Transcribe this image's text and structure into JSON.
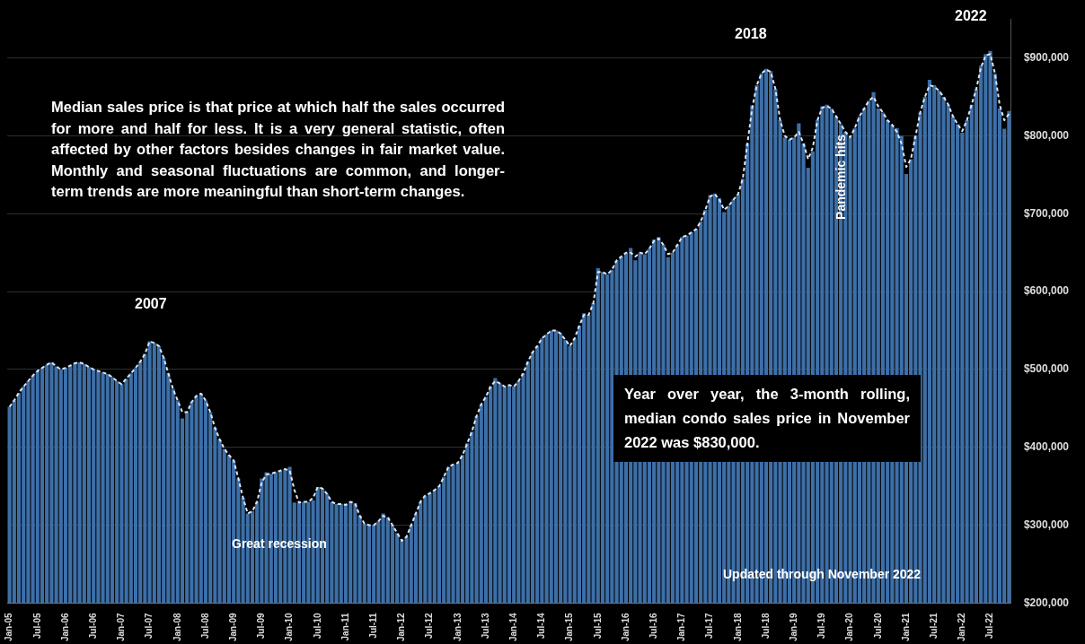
{
  "chart_data": {
    "type": "bar",
    "categories": [
      "Jan-05",
      null,
      null,
      null,
      null,
      null,
      "Jul-05",
      null,
      null,
      null,
      null,
      null,
      "Jan-06",
      null,
      null,
      null,
      null,
      null,
      "Jul-06",
      null,
      null,
      null,
      null,
      null,
      "Jan-07",
      null,
      null,
      null,
      null,
      null,
      "Jul-07",
      null,
      null,
      null,
      null,
      null,
      "Jan-08",
      null,
      null,
      null,
      null,
      null,
      "Jul-08",
      null,
      null,
      null,
      null,
      null,
      "Jan-09",
      null,
      null,
      null,
      null,
      null,
      "Jul-09",
      null,
      null,
      null,
      null,
      null,
      "Jan-10",
      null,
      null,
      null,
      null,
      null,
      "Jul-10",
      null,
      null,
      null,
      null,
      null,
      "Jan-11",
      null,
      null,
      null,
      null,
      null,
      "Jul-11",
      null,
      null,
      null,
      null,
      null,
      "Jan-12",
      null,
      null,
      null,
      null,
      null,
      "Jul-12",
      null,
      null,
      null,
      null,
      null,
      "Jan-13",
      null,
      null,
      null,
      null,
      null,
      "Jul-13",
      null,
      null,
      null,
      null,
      null,
      "Jan-14",
      null,
      null,
      null,
      null,
      null,
      "Jul-14",
      null,
      null,
      null,
      null,
      null,
      "Jan-15",
      null,
      null,
      null,
      null,
      null,
      "Jul-15",
      null,
      null,
      null,
      null,
      null,
      "Jan-16",
      null,
      null,
      null,
      null,
      null,
      "Jul-16",
      null,
      null,
      null,
      null,
      null,
      "Jan-17",
      null,
      null,
      null,
      null,
      null,
      "Jul-17",
      null,
      null,
      null,
      null,
      null,
      "Jan-18",
      null,
      null,
      null,
      null,
      null,
      "Jul-18",
      null,
      null,
      null,
      null,
      null,
      "Jan-19",
      null,
      null,
      null,
      null,
      null,
      "Jul-19",
      null,
      null,
      null,
      null,
      null,
      "Jan-20",
      null,
      null,
      null,
      null,
      null,
      "Jul-20",
      null,
      null,
      null,
      null,
      null,
      "Jan-21",
      null,
      null,
      null,
      null,
      null,
      "Jul-21",
      null,
      null,
      null,
      null,
      null,
      "Jan-22",
      null,
      null,
      null,
      null,
      null,
      "Jul-22",
      null,
      null,
      null,
      null
    ],
    "series": [
      {
        "color": "#3d6fa8",
        "values": [
          452000,
          460000,
          470000,
          478000,
          485000,
          492000,
          498000,
          502000,
          506000,
          509000,
          504000,
          500000,
          502000,
          505000,
          508000,
          509000,
          507000,
          503000,
          500000,
          498000,
          496000,
          494000,
          490000,
          485000,
          481000,
          488000,
          495000,
          502000,
          510000,
          520000,
          536000,
          534000,
          530000,
          515000,
          495000,
          475000,
          460000,
          437000,
          445000,
          458000,
          466000,
          469000,
          460000,
          445000,
          425000,
          410000,
          398000,
          390000,
          383000,
          360000,
          335000,
          315000,
          318000,
          330000,
          360000,
          368000,
          366000,
          368000,
          370000,
          372000,
          375000,
          329000,
          329000,
          330000,
          330000,
          332000,
          349000,
          347000,
          340000,
          330000,
          327000,
          327000,
          326000,
          330000,
          328000,
          312000,
          302000,
          300000,
          300000,
          305000,
          315000,
          310000,
          300000,
          290000,
          280000,
          285000,
          300000,
          315000,
          330000,
          338000,
          341000,
          345000,
          350000,
          362000,
          375000,
          378000,
          380000,
          390000,
          405000,
          420000,
          440000,
          455000,
          465000,
          478000,
          489000,
          482000,
          478000,
          480000,
          478000,
          485000,
          495000,
          510000,
          522000,
          530000,
          540000,
          545000,
          550000,
          550000,
          546000,
          538000,
          530000,
          540000,
          556000,
          572000,
          570000,
          585000,
          630000,
          625000,
          622000,
          628000,
          640000,
          645000,
          650000,
          656000,
          640000,
          650000,
          648000,
          655000,
          667000,
          670000,
          660000,
          644000,
          650000,
          660000,
          670000,
          672000,
          676000,
          680000,
          690000,
          705000,
          724000,
          726000,
          720000,
          702000,
          710000,
          718000,
          725000,
          745000,
          790000,
          839000,
          865000,
          880000,
          886000,
          883000,
          860000,
          820000,
          798000,
          795000,
          798000,
          816000,
          790000,
          759000,
          780000,
          820000,
          838000,
          840000,
          835000,
          825000,
          815000,
          805000,
          798000,
          810000,
          825000,
          835000,
          845000,
          856000,
          835000,
          830000,
          820000,
          814000,
          810000,
          800000,
          751000,
          770000,
          800000,
          830000,
          850000,
          872000,
          865000,
          858000,
          850000,
          840000,
          825000,
          815000,
          804000,
          820000,
          840000,
          860000,
          890000,
          905000,
          909000,
          880000,
          835000,
          809000,
          832000
        ]
      },
      {
        "type": "line",
        "color": "#dce6f2",
        "values": [
          452000,
          460000,
          470000,
          478000,
          485000,
          492000,
          498000,
          502000,
          506000,
          509000,
          504000,
          500000,
          502000,
          505000,
          508000,
          509000,
          507000,
          503000,
          500000,
          498000,
          496000,
          494000,
          490000,
          485000,
          481000,
          488000,
          495000,
          502000,
          510000,
          520000,
          536000,
          534000,
          530000,
          515000,
          495000,
          475000,
          460000,
          445000,
          445000,
          458000,
          466000,
          469000,
          460000,
          445000,
          425000,
          410000,
          398000,
          390000,
          383000,
          360000,
          335000,
          315000,
          318000,
          330000,
          355000,
          365000,
          366000,
          368000,
          370000,
          372000,
          370000,
          345000,
          329000,
          330000,
          330000,
          335000,
          349000,
          347000,
          340000,
          330000,
          327000,
          327000,
          326000,
          330000,
          328000,
          312000,
          302000,
          300000,
          300000,
          305000,
          312000,
          310000,
          300000,
          290000,
          280000,
          285000,
          300000,
          315000,
          330000,
          338000,
          341000,
          345000,
          350000,
          362000,
          375000,
          378000,
          380000,
          390000,
          405000,
          420000,
          440000,
          455000,
          465000,
          478000,
          485000,
          482000,
          478000,
          480000,
          478000,
          485000,
          495000,
          510000,
          522000,
          530000,
          540000,
          545000,
          550000,
          550000,
          546000,
          538000,
          530000,
          540000,
          556000,
          570000,
          570000,
          585000,
          625000,
          625000,
          622000,
          628000,
          640000,
          645000,
          650000,
          650000,
          645000,
          650000,
          648000,
          655000,
          665000,
          668000,
          660000,
          648000,
          650000,
          660000,
          670000,
          672000,
          676000,
          680000,
          690000,
          705000,
          722000,
          725000,
          718000,
          705000,
          710000,
          718000,
          725000,
          745000,
          790000,
          835000,
          865000,
          880000,
          885000,
          882000,
          860000,
          820000,
          800000,
          795000,
          798000,
          805000,
          790000,
          770000,
          785000,
          820000,
          836000,
          838000,
          835000,
          825000,
          815000,
          805000,
          798000,
          810000,
          825000,
          835000,
          845000,
          850000,
          838000,
          830000,
          820000,
          814000,
          805000,
          790000,
          760000,
          770000,
          800000,
          830000,
          850000,
          865000,
          863000,
          858000,
          850000,
          840000,
          825000,
          815000,
          806000,
          820000,
          840000,
          860000,
          888000,
          903000,
          905000,
          880000,
          840000,
          820000,
          828000
        ]
      }
    ],
    "ylim": [
      200000,
      950000
    ],
    "yticks": [
      {
        "value": 200000,
        "label": "$200,000"
      },
      {
        "value": 300000,
        "label": "$300,000"
      },
      {
        "value": 400000,
        "label": "$400,000"
      },
      {
        "value": 500000,
        "label": "$500,000"
      },
      {
        "value": 600000,
        "label": "$600,000"
      },
      {
        "value": 700000,
        "label": "$700,000"
      },
      {
        "value": 800000,
        "label": "$800,000"
      },
      {
        "value": 900000,
        "label": "$900,000"
      }
    ],
    "grid": "y",
    "legend": false,
    "marker": "none",
    "line_style": "dashed",
    "annotations": [
      "2007",
      "2018",
      "2022",
      "Median sales price is that price at which half the sales occurred for more and half for less. It is a very general statistic, often affected by other factors besides changes in fair market value. Monthly and seasonal fluctuations are common, and longer-term trends are more meaningful than short-term changes.",
      "Great recession",
      "Pandemic hits",
      "Year over year, the 3-month rolling, median condo sales price in November 2022 was $830,000.",
      "Updated through November 2022"
    ]
  }
}
